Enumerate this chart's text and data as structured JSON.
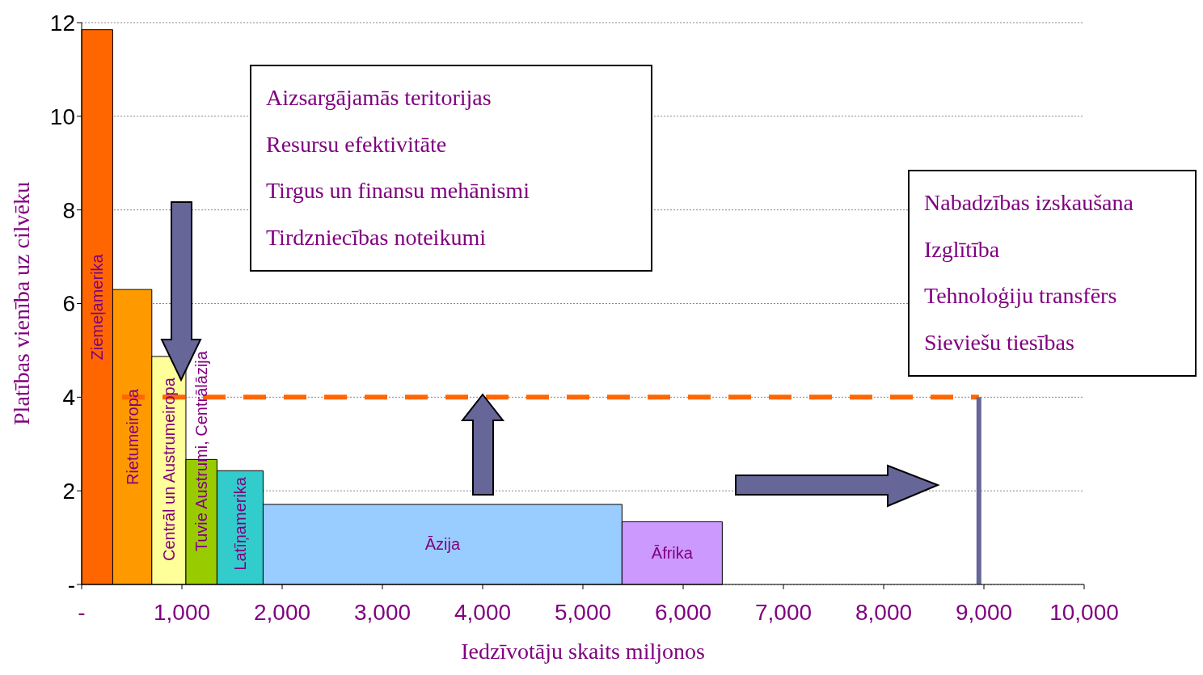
{
  "chart_data": {
    "type": "histogram",
    "xlabel": "Iedzīvotāju skaits miljonos",
    "ylabel": "Platības vienība uz cilvēku",
    "categories": [
      "Ziemeļamerika",
      "Rietumeiropa",
      "Centrāl un Austrumeiropa",
      "Tuvie Austrumi, Centrālāzija",
      "Latīņamerika",
      "Āzija",
      "Āfrika"
    ],
    "bins": [
      0,
      310,
      700,
      1040,
      1350,
      1810,
      5390,
      6390
    ],
    "values": [
      11.85,
      6.3,
      4.87,
      2.67,
      2.43,
      1.71,
      1.34
    ],
    "colors": [
      "#ff6600",
      "#ff9900",
      "#ffff99",
      "#99cc00",
      "#33cccc",
      "#99ccff",
      "#cc99ff"
    ],
    "xlim": [
      0,
      10000
    ],
    "xticks": [
      {
        "value": 0,
        "label": "-"
      },
      {
        "value": 1000,
        "label": "1,000"
      },
      {
        "value": 2000,
        "label": "2,000"
      },
      {
        "value": 3000,
        "label": "3,000"
      },
      {
        "value": 4000,
        "label": "4,000"
      },
      {
        "value": 5000,
        "label": "5,000"
      },
      {
        "value": 6000,
        "label": "6,000"
      },
      {
        "value": 7000,
        "label": "7,000"
      },
      {
        "value": 8000,
        "label": "8,000"
      },
      {
        "value": 9000,
        "label": "9,000"
      },
      {
        "value": 10000,
        "label": "10,000"
      }
    ],
    "ylim": [
      0,
      12
    ],
    "yticks": [
      {
        "value": 0,
        "label": "-"
      },
      2,
      4,
      6,
      8,
      10,
      12
    ],
    "grid": "y",
    "ref_lines": [
      {
        "axis": "y",
        "value": 4,
        "color": "#ff6600",
        "line_style": "dashed"
      },
      {
        "axis": "x",
        "value": 8950,
        "color": "#666699",
        "line_style": "solid"
      }
    ],
    "annotations": [
      "Aizsargājamās teritorijas",
      "Resursu efektivitāte",
      "Tirgus un finansu mehānismi",
      "Tirdzniecības noteikumi",
      "Nabadzības izskaušana",
      "Izglītība",
      "Tehnoloģiju transfērs",
      "Sieviešu tiesības"
    ]
  }
}
